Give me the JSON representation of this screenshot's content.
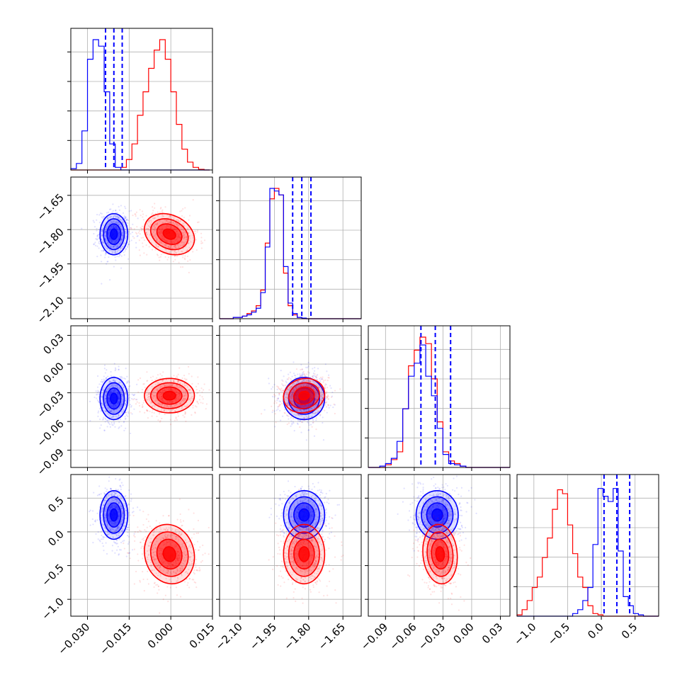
{
  "chart_data": {
    "type": "corner",
    "colors": {
      "blue": "#0000ff",
      "red": "#ff0000",
      "grid": "#b0b0b0",
      "frame": "#000000"
    },
    "parameters": [
      {
        "range": [
          -0.036,
          0.015
        ],
        "ticks": [
          -0.03,
          -0.015,
          0.0,
          0.015
        ],
        "tick_labels": [
          "−0.030",
          "−0.015",
          "0.000",
          "0.015"
        ]
      },
      {
        "range": [
          -2.19,
          -1.57
        ],
        "ticks": [
          -2.1,
          -1.95,
          -1.8,
          -1.65
        ],
        "tick_labels": [
          "−2.10",
          "−1.95",
          "−1.80",
          "−1.65"
        ]
      },
      {
        "range": [
          -0.108,
          0.04
        ],
        "ticks": [
          -0.09,
          -0.06,
          -0.03,
          0.0,
          0.03
        ],
        "tick_labels": [
          "−0.09",
          "−0.06",
          "−0.03",
          "0.00",
          "0.03"
        ]
      },
      {
        "range": [
          -1.25,
          0.85
        ],
        "ticks": [
          -1.0,
          -0.5,
          0.0,
          0.5
        ],
        "tick_labels": [
          "−1.0",
          "−0.5",
          "0.0",
          "0.5"
        ]
      }
    ],
    "series": [
      {
        "color": "blue",
        "center": [
          -0.0205,
          -1.82,
          -0.036,
          0.25
        ],
        "spread": [
          0.0025,
          0.045,
          0.011,
          0.18
        ],
        "quantiles": [
          [
            -0.0235,
            -0.0205,
            -0.0175
          ],
          [
            -1.87,
            -1.83,
            -1.79
          ],
          [
            -0.053,
            -0.038,
            -0.022
          ],
          [
            0.04,
            0.23,
            0.42
          ]
        ]
      },
      {
        "color": "red",
        "center": [
          -0.0005,
          -1.82,
          -0.033,
          -0.33
        ],
        "spread": [
          0.0045,
          0.045,
          0.009,
          0.22
        ]
      }
    ],
    "histograms": [
      {
        "bin_edges_start": -0.036,
        "bin_width": 0.002,
        "blue": [
          0.01,
          0.05,
          0.3,
          0.85,
          1.0,
          0.95,
          0.6,
          0.2,
          0.02,
          0,
          0,
          0,
          0,
          0,
          0,
          0,
          0,
          0,
          0,
          0,
          0,
          0,
          0,
          0,
          0
        ],
        "red": [
          0,
          0,
          0,
          0,
          0,
          0,
          0,
          0,
          0,
          0.02,
          0.08,
          0.2,
          0.42,
          0.6,
          0.78,
          0.92,
          1.0,
          0.85,
          0.6,
          0.35,
          0.16,
          0.06,
          0.02,
          0.005,
          0
        ]
      },
      {
        "bin_edges_start": -2.19,
        "bin_width": 0.02,
        "blue": [
          0,
          0,
          0,
          0.01,
          0.01,
          0.02,
          0.03,
          0.05,
          0.08,
          0.2,
          0.55,
          1.0,
          0.98,
          0.95,
          0.4,
          0.12,
          0.04,
          0.01,
          0.005,
          0,
          0,
          0,
          0,
          0,
          0,
          0,
          0,
          0,
          0,
          0,
          0
        ],
        "red": [
          0,
          0,
          0,
          0.01,
          0.01,
          0.02,
          0.04,
          0.06,
          0.1,
          0.22,
          0.58,
          0.92,
          1.0,
          0.95,
          0.35,
          0.1,
          0.03,
          0.01,
          0,
          0,
          0,
          0,
          0,
          0,
          0,
          0,
          0,
          0,
          0,
          0,
          0
        ]
      },
      {
        "bin_edges_start": -0.108,
        "bin_width": 0.006,
        "blue": [
          0,
          0,
          0.01,
          0.03,
          0.07,
          0.2,
          0.45,
          0.7,
          0.8,
          0.94,
          0.7,
          0.55,
          0.3,
          0.1,
          0.03,
          0.02,
          0.01,
          0,
          0,
          0,
          0,
          0,
          0,
          0,
          0
        ],
        "red": [
          0,
          0,
          0,
          0.02,
          0.06,
          0.12,
          0.45,
          0.78,
          0.9,
          1.0,
          0.95,
          0.68,
          0.35,
          0.12,
          0.05,
          0.03,
          0.01,
          0,
          0,
          0,
          0,
          0,
          0,
          0,
          0
        ]
      },
      {
        "bin_edges_start": -1.25,
        "bin_width": 0.075,
        "blue": [
          0,
          0,
          0,
          0,
          0,
          0,
          0,
          0,
          0,
          0,
          0,
          0.02,
          0.05,
          0.12,
          0.22,
          0.55,
          0.98,
          0.92,
          0.88,
          0.98,
          0.5,
          0.15,
          0.08,
          0.02,
          0.01,
          0,
          0,
          0
        ],
        "red": [
          0.01,
          0.05,
          0.12,
          0.22,
          0.3,
          0.45,
          0.6,
          0.82,
          0.97,
          0.94,
          0.7,
          0.48,
          0.3,
          0.22,
          0.08,
          0.02,
          0.01,
          0,
          0,
          0,
          0,
          0,
          0,
          0,
          0,
          0,
          0,
          0
        ]
      }
    ],
    "panels_2d": [
      {
        "x": 0,
        "y": 1,
        "rho_blue": 0.0,
        "rho_red": -0.25
      },
      {
        "x": 0,
        "y": 2,
        "rho_blue": 0.0,
        "rho_red": 0.0
      },
      {
        "x": 1,
        "y": 2,
        "rho_blue": 0.0,
        "rho_red": 0.1
      },
      {
        "x": 0,
        "y": 3,
        "rho_blue": 0.0,
        "rho_red": -0.1
      },
      {
        "x": 1,
        "y": 3,
        "rho_blue": 0.0,
        "rho_red": 0.0
      },
      {
        "x": 2,
        "y": 3,
        "rho_blue": 0.0,
        "rho_red": -0.1
      }
    ],
    "contour_levels_sigma": [
      0.5,
      1.0,
      1.5,
      2.0
    ],
    "grid": true
  }
}
